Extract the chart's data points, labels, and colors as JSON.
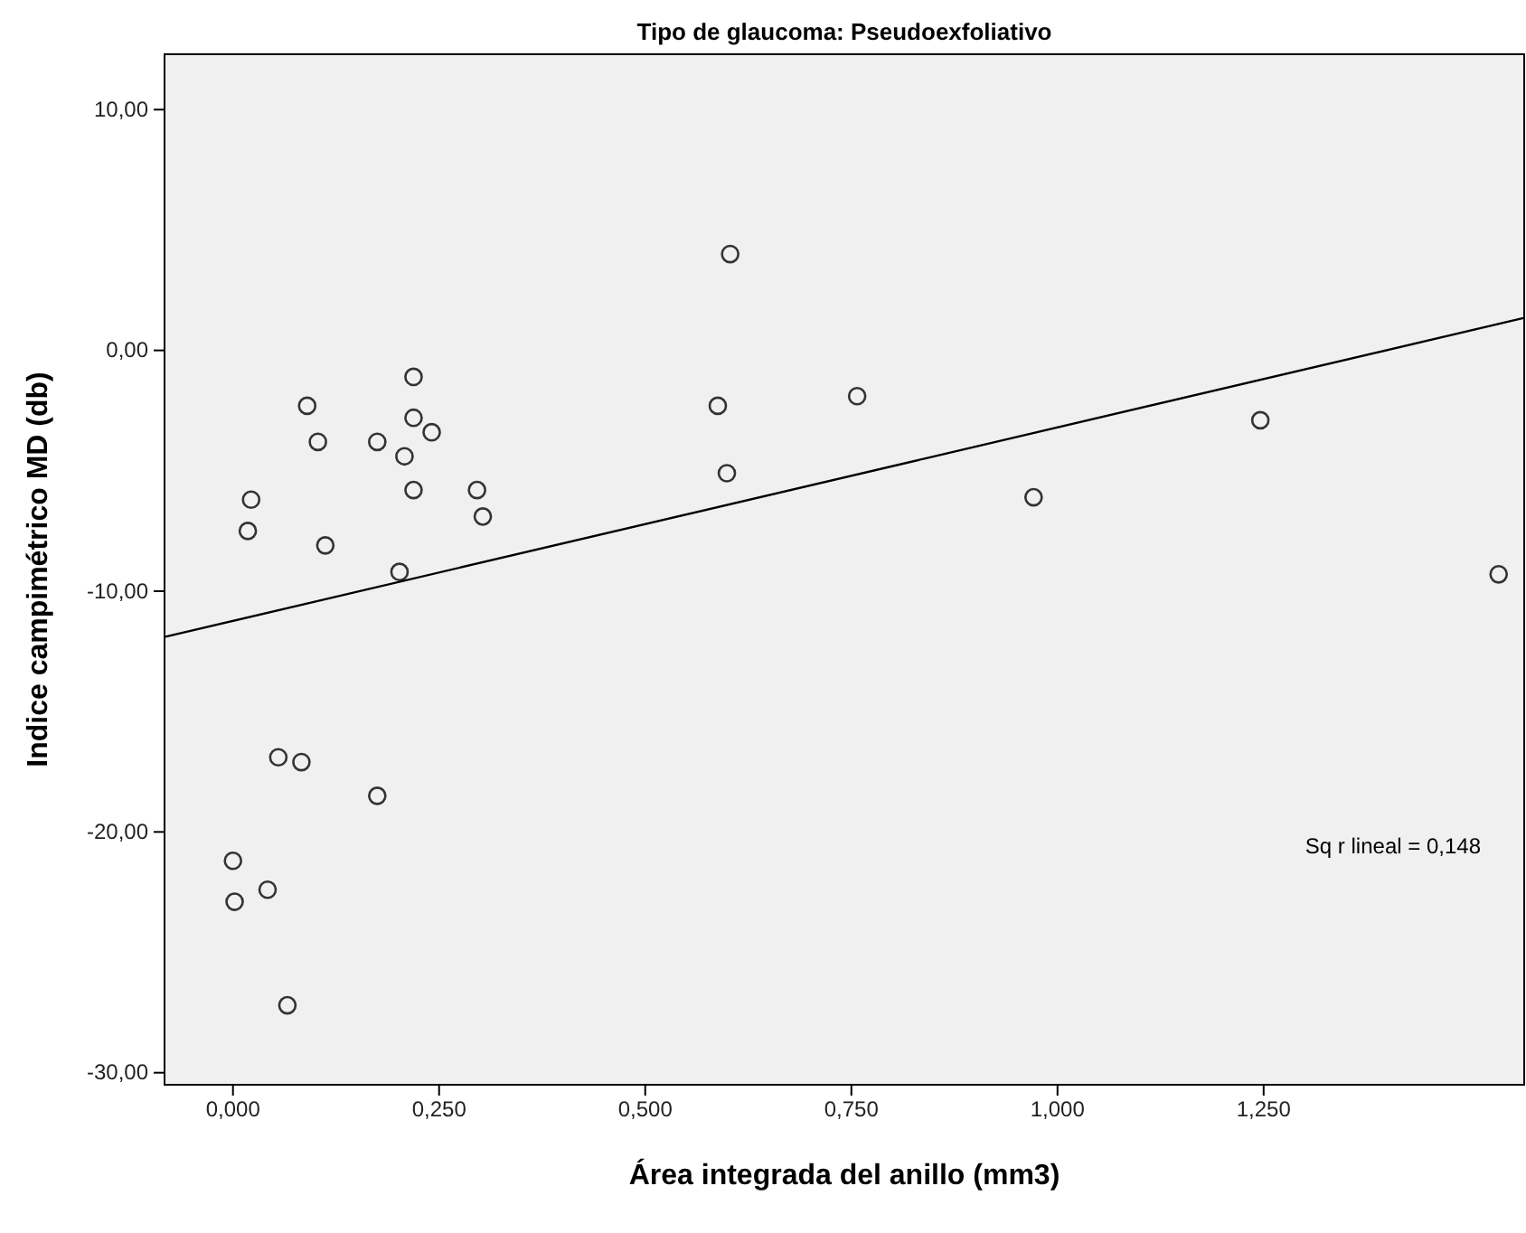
{
  "chart_data": {
    "type": "scatter",
    "title": "Tipo de glaucoma: Pseudoexfoliativo",
    "xlabel": "Área integrada del anillo (mm3)",
    "ylabel": "Indice campimétrico MD (db)",
    "xlim": [
      -0.083,
      1.566
    ],
    "ylim": [
      -30.5,
      12.3
    ],
    "xticks": [
      {
        "value": 0,
        "label": "0,000"
      },
      {
        "value": 0.25,
        "label": "0,250"
      },
      {
        "value": 0.5,
        "label": "0,500"
      },
      {
        "value": 0.75,
        "label": "0,750"
      },
      {
        "value": 1,
        "label": "1,000"
      },
      {
        "value": 1.25,
        "label": "1,250"
      }
    ],
    "yticks": [
      {
        "value": 10,
        "label": "10,00"
      },
      {
        "value": 0,
        "label": "0,00"
      },
      {
        "value": -10,
        "label": "-10,00"
      },
      {
        "value": -20,
        "label": "-20,00"
      },
      {
        "value": -30,
        "label": "-30,00"
      }
    ],
    "grid": false,
    "series": [
      {
        "marker": "circle",
        "color": "#333333",
        "x": [
          0,
          0.002,
          0.042,
          0.066,
          0.055,
          0.083,
          0.175,
          0.018,
          0.022,
          0.09,
          0.103,
          0.112,
          0.175,
          0.208,
          0.219,
          0.219,
          0.241,
          0.219,
          0.202,
          0.296,
          0.303,
          0.588,
          0.603,
          0.599,
          0.757,
          0.971,
          1.246,
          1.535
        ],
        "values": [
          -21.2,
          -22.9,
          -22.4,
          -27.2,
          -16.9,
          -17.1,
          -18.5,
          -7.5,
          -6.2,
          -2.3,
          -3.8,
          -8.1,
          -3.8,
          -4.4,
          -1.1,
          -2.8,
          -3.4,
          -5.8,
          -9.2,
          -5.8,
          -6.9,
          -2.3,
          4.0,
          -5.1,
          -1.9,
          -6.1,
          -2.9,
          -9.3
        ]
      },
      {
        "type": "line",
        "color": "#000000",
        "x": [
          -0.083,
          1.566
        ],
        "values": [
          -11.9,
          1.35
        ]
      }
    ],
    "annotations": [
      "Sq r lineal = 0,148"
    ]
  }
}
